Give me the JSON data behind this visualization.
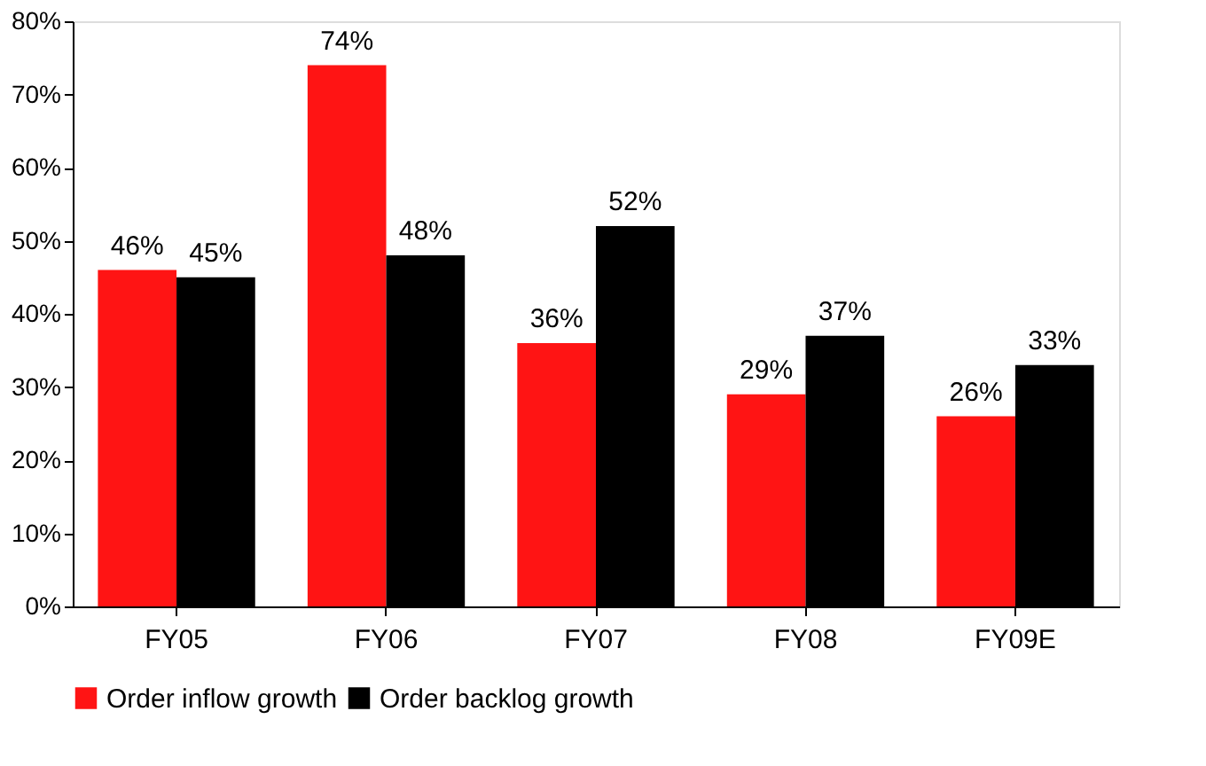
{
  "chart_data": {
    "type": "bar",
    "categories": [
      "FY05",
      "FY06",
      "FY07",
      "FY08",
      "FY09E"
    ],
    "series": [
      {
        "name": "Order inflow growth",
        "color": "#ff1414",
        "values": [
          46,
          74,
          36,
          29,
          26
        ],
        "value_labels": [
          "46%",
          "74%",
          "36%",
          "29%",
          "26%"
        ]
      },
      {
        "name": "Order backlog growth",
        "color": "#000000",
        "values": [
          45,
          48,
          52,
          37,
          33
        ],
        "value_labels": [
          "45%",
          "48%",
          "52%",
          "37%",
          "33%"
        ]
      }
    ],
    "ylim": [
      0,
      80
    ],
    "yticks": [
      {
        "value": 0,
        "label": "0%"
      },
      {
        "value": 10,
        "label": "10%"
      },
      {
        "value": 20,
        "label": "20%"
      },
      {
        "value": 30,
        "label": "30%"
      },
      {
        "value": 40,
        "label": "40%"
      },
      {
        "value": 50,
        "label": "50%"
      },
      {
        "value": 60,
        "label": "60%"
      },
      {
        "value": 70,
        "label": "70%"
      },
      {
        "value": 80,
        "label": "80%"
      }
    ],
    "grid": false,
    "legend": "bottom"
  }
}
